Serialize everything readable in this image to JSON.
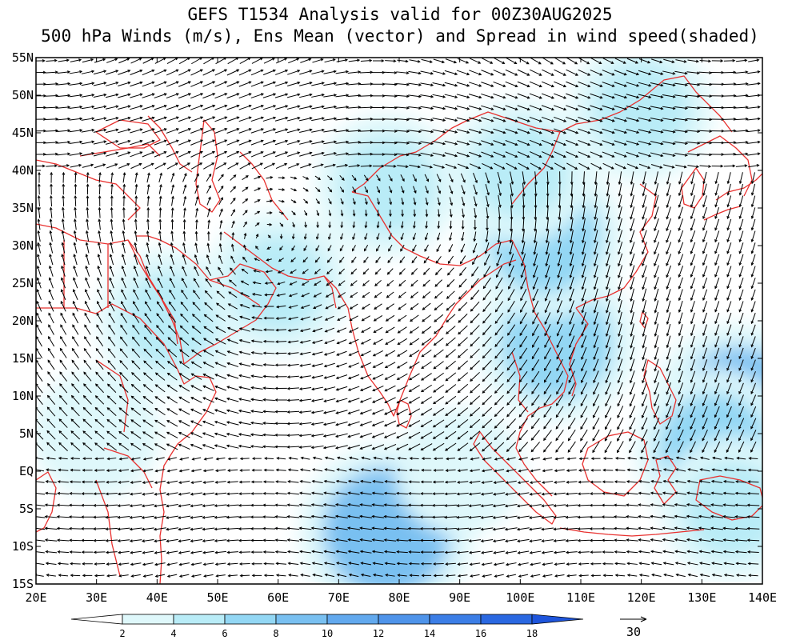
{
  "title": {
    "line1": "GEFS T1534 Analysis valid for 00Z30AUG2025",
    "line2": "500 hPa Winds (m/s), Ens Mean (vector) and Spread in wind speed(shaded)"
  },
  "map": {
    "lon_range": [
      20,
      140
    ],
    "lat_range": [
      -15,
      55
    ],
    "lat_labels": [
      "55N",
      "50N",
      "45N",
      "40N",
      "35N",
      "30N",
      "25N",
      "20N",
      "15N",
      "10N",
      "5N",
      "EQ",
      "5S",
      "10S",
      "15S"
    ],
    "lon_labels": [
      "20E",
      "30E",
      "40E",
      "50E",
      "60E",
      "70E",
      "80E",
      "90E",
      "100E",
      "110E",
      "120E",
      "130E",
      "140E"
    ],
    "coastline_color": "#e8312f",
    "arrow_color": "#000000"
  },
  "colorbar": {
    "tick_labels": [
      "2",
      "4",
      "6",
      "8",
      "10",
      "12",
      "14",
      "16",
      "18"
    ],
    "colors": [
      "#ffffff",
      "#dff8fb",
      "#b9ecf7",
      "#93d7f4",
      "#79c0f1",
      "#62a9ee",
      "#4f94ea",
      "#3c7ee6",
      "#2a68e1",
      "#1e55dc"
    ]
  },
  "reference_vector": {
    "label": "30"
  },
  "spread_regions": [
    {
      "lon": 78,
      "lat": -8,
      "level": 4
    },
    {
      "lon": 136,
      "lat": 8,
      "level": 4
    },
    {
      "lon": 132,
      "lat": 3,
      "level": 3
    },
    {
      "lon": 106,
      "lat": 17,
      "level": 3
    },
    {
      "lon": 104,
      "lat": 31,
      "level": 3
    },
    {
      "lon": 78,
      "lat": 38,
      "level": 2
    },
    {
      "lon": 42,
      "lat": 20,
      "level": 2
    },
    {
      "lon": 60,
      "lat": 25,
      "level": 2
    },
    {
      "lon": 100,
      "lat": 40,
      "level": 2
    },
    {
      "lon": 135,
      "lat": -5,
      "level": 2
    },
    {
      "lon": 120,
      "lat": 48,
      "level": 2
    },
    {
      "lon": 30,
      "lat": 5,
      "level": 1
    },
    {
      "lon": 90,
      "lat": 0,
      "level": 1
    }
  ]
}
